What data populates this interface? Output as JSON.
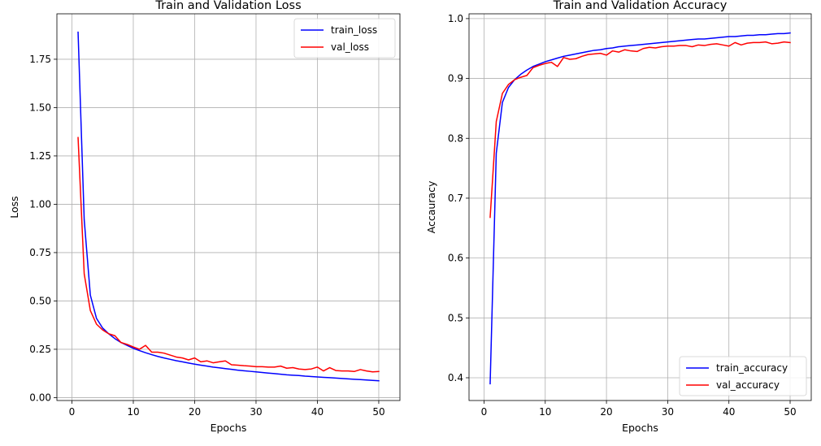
{
  "chart_data": [
    {
      "type": "line",
      "title": "Train and Validation Loss",
      "xlabel": "Epochs",
      "ylabel": "Loss",
      "xlim": [
        -2.45,
        53.45
      ],
      "ylim": [
        -0.015,
        1.985
      ],
      "xticks": [
        0,
        10,
        20,
        30,
        40,
        50
      ],
      "xtick_labels": [
        "0",
        "10",
        "20",
        "30",
        "40",
        "50"
      ],
      "yticks": [
        0.0,
        0.25,
        0.5,
        0.75,
        1.0,
        1.25,
        1.5,
        1.75
      ],
      "ytick_labels": [
        "0.00",
        "0.25",
        "0.50",
        "0.75",
        "1.00",
        "1.25",
        "1.50",
        "1.75"
      ],
      "grid": true,
      "legend_position": "upper right",
      "x": [
        1,
        2,
        3,
        4,
        5,
        6,
        7,
        8,
        9,
        10,
        11,
        12,
        13,
        14,
        15,
        16,
        17,
        18,
        19,
        20,
        21,
        22,
        23,
        24,
        25,
        26,
        27,
        28,
        29,
        30,
        31,
        32,
        33,
        34,
        35,
        36,
        37,
        38,
        39,
        40,
        41,
        42,
        43,
        44,
        45,
        46,
        47,
        48,
        49,
        50
      ],
      "series": [
        {
          "name": "train_loss",
          "color": "#0000ff",
          "values": [
            1.89,
            0.92,
            0.53,
            0.41,
            0.36,
            0.33,
            0.305,
            0.285,
            0.27,
            0.255,
            0.243,
            0.232,
            0.222,
            0.213,
            0.205,
            0.198,
            0.191,
            0.185,
            0.179,
            0.173,
            0.168,
            0.163,
            0.158,
            0.154,
            0.15,
            0.146,
            0.142,
            0.139,
            0.136,
            0.133,
            0.13,
            0.127,
            0.124,
            0.121,
            0.118,
            0.116,
            0.114,
            0.111,
            0.109,
            0.107,
            0.105,
            0.103,
            0.101,
            0.099,
            0.097,
            0.095,
            0.093,
            0.091,
            0.089,
            0.087
          ]
        },
        {
          "name": "val_loss",
          "color": "#ff0000",
          "values": [
            1.345,
            0.64,
            0.45,
            0.38,
            0.35,
            0.33,
            0.32,
            0.285,
            0.275,
            0.262,
            0.25,
            0.27,
            0.235,
            0.235,
            0.23,
            0.22,
            0.21,
            0.205,
            0.195,
            0.205,
            0.185,
            0.19,
            0.18,
            0.185,
            0.19,
            0.17,
            0.168,
            0.165,
            0.163,
            0.16,
            0.16,
            0.158,
            0.158,
            0.163,
            0.152,
            0.155,
            0.148,
            0.145,
            0.148,
            0.158,
            0.138,
            0.155,
            0.14,
            0.138,
            0.138,
            0.135,
            0.145,
            0.138,
            0.133,
            0.135
          ]
        }
      ]
    },
    {
      "type": "line",
      "title": "Train and Validation Accuracy",
      "xlabel": "Epochs",
      "ylabel": "Accauracy",
      "xlim": [
        -2.45,
        53.45
      ],
      "ylim": [
        0.362,
        1.008
      ],
      "xticks": [
        0,
        10,
        20,
        30,
        40,
        50
      ],
      "xtick_labels": [
        "0",
        "10",
        "20",
        "30",
        "40",
        "50"
      ],
      "yticks": [
        0.4,
        0.5,
        0.6,
        0.7,
        0.8,
        0.9,
        1.0
      ],
      "ytick_labels": [
        "0.4",
        "0.5",
        "0.6",
        "0.7",
        "0.8",
        "0.9",
        "1.0"
      ],
      "grid": true,
      "legend_position": "lower right",
      "x": [
        1,
        2,
        3,
        4,
        5,
        6,
        7,
        8,
        9,
        10,
        11,
        12,
        13,
        14,
        15,
        16,
        17,
        18,
        19,
        20,
        21,
        22,
        23,
        24,
        25,
        26,
        27,
        28,
        29,
        30,
        31,
        32,
        33,
        34,
        35,
        36,
        37,
        38,
        39,
        40,
        41,
        42,
        43,
        44,
        45,
        46,
        47,
        48,
        49,
        50
      ],
      "series": [
        {
          "name": "train_accuracy",
          "color": "#0000ff",
          "values": [
            0.39,
            0.775,
            0.86,
            0.885,
            0.898,
            0.907,
            0.914,
            0.92,
            0.924,
            0.928,
            0.931,
            0.934,
            0.937,
            0.939,
            0.941,
            0.943,
            0.945,
            0.947,
            0.948,
            0.95,
            0.951,
            0.953,
            0.954,
            0.955,
            0.956,
            0.957,
            0.958,
            0.959,
            0.96,
            0.961,
            0.962,
            0.963,
            0.964,
            0.965,
            0.966,
            0.966,
            0.967,
            0.968,
            0.969,
            0.97,
            0.97,
            0.971,
            0.972,
            0.972,
            0.973,
            0.973,
            0.974,
            0.975,
            0.975,
            0.976
          ]
        },
        {
          "name": "val_accuracy",
          "color": "#ff0000",
          "values": [
            0.668,
            0.828,
            0.875,
            0.89,
            0.898,
            0.902,
            0.905,
            0.918,
            0.922,
            0.925,
            0.927,
            0.92,
            0.935,
            0.932,
            0.933,
            0.937,
            0.94,
            0.941,
            0.942,
            0.939,
            0.946,
            0.944,
            0.948,
            0.946,
            0.945,
            0.95,
            0.952,
            0.951,
            0.953,
            0.954,
            0.954,
            0.955,
            0.955,
            0.953,
            0.956,
            0.955,
            0.957,
            0.958,
            0.956,
            0.954,
            0.96,
            0.956,
            0.959,
            0.96,
            0.96,
            0.961,
            0.958,
            0.959,
            0.961,
            0.96
          ]
        }
      ]
    }
  ]
}
